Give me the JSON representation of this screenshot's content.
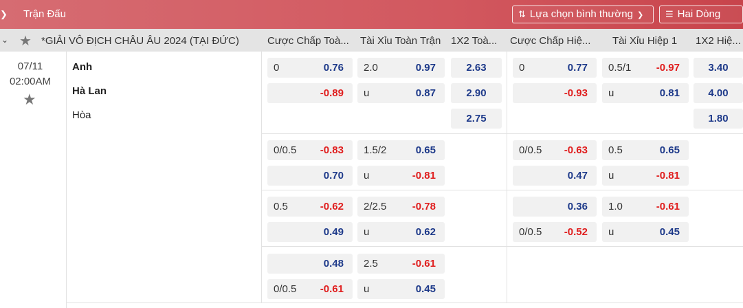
{
  "header": {
    "title": "Trận Đấu",
    "sort_label": "Lựa chọn bình thường",
    "odds_label": "Hai Dòng"
  },
  "league": {
    "name": "*GIẢI VÔ ĐỊCH CHÂU ÂU 2024 (TẠI ĐỨC)",
    "columns": [
      "Cược Chấp Toà...",
      "Tài Xỉu Toàn Trận",
      "1X2 Toà...",
      "Cược Chấp Hiệ...",
      "Tài Xỉu Hiệp 1",
      "1X2 Hiệ..."
    ]
  },
  "match": {
    "date": "07/11",
    "time": "02:00AM",
    "home": "Anh",
    "away": "Hà Lan",
    "draw": "Hòa"
  },
  "rows": [
    {
      "hdp_ft": [
        {
          "line": "0",
          "odds": "0.76"
        },
        {
          "line": "",
          "odds": "-0.89"
        }
      ],
      "ou_ft": [
        {
          "line": "2.0",
          "odds": "0.97"
        },
        {
          "line": "u",
          "odds": "0.87"
        }
      ],
      "x12_ft": [
        "2.63",
        "2.90",
        "2.75"
      ],
      "hdp_h1": [
        {
          "line": "0",
          "odds": "0.77"
        },
        {
          "line": "",
          "odds": "-0.93"
        }
      ],
      "ou_h1": [
        {
          "line": "0.5/1",
          "odds": "-0.97"
        },
        {
          "line": "u",
          "odds": "0.81"
        }
      ],
      "x12_h1": [
        "3.40",
        "4.00",
        "1.80"
      ]
    },
    {
      "hdp_ft": [
        {
          "line": "0/0.5",
          "odds": "-0.83"
        },
        {
          "line": "",
          "odds": "0.70"
        }
      ],
      "ou_ft": [
        {
          "line": "1.5/2",
          "odds": "0.65"
        },
        {
          "line": "u",
          "odds": "-0.81"
        }
      ],
      "hdp_h1": [
        {
          "line": "0/0.5",
          "odds": "-0.63"
        },
        {
          "line": "",
          "odds": "0.47"
        }
      ],
      "ou_h1": [
        {
          "line": "0.5",
          "odds": "0.65"
        },
        {
          "line": "u",
          "odds": "-0.81"
        }
      ]
    },
    {
      "hdp_ft": [
        {
          "line": "0.5",
          "odds": "-0.62"
        },
        {
          "line": "",
          "odds": "0.49"
        }
      ],
      "ou_ft": [
        {
          "line": "2/2.5",
          "odds": "-0.78"
        },
        {
          "line": "u",
          "odds": "0.62"
        }
      ],
      "hdp_h1": [
        {
          "line": "",
          "odds": "0.36"
        },
        {
          "line": "0/0.5",
          "odds": "-0.52"
        }
      ],
      "ou_h1": [
        {
          "line": "1.0",
          "odds": "-0.61"
        },
        {
          "line": "u",
          "odds": "0.45"
        }
      ]
    },
    {
      "hdp_ft": [
        {
          "line": "",
          "odds": "0.48"
        },
        {
          "line": "0/0.5",
          "odds": "-0.61"
        }
      ],
      "ou_ft": [
        {
          "line": "2.5",
          "odds": "-0.61"
        },
        {
          "line": "u",
          "odds": "0.45"
        }
      ]
    }
  ]
}
